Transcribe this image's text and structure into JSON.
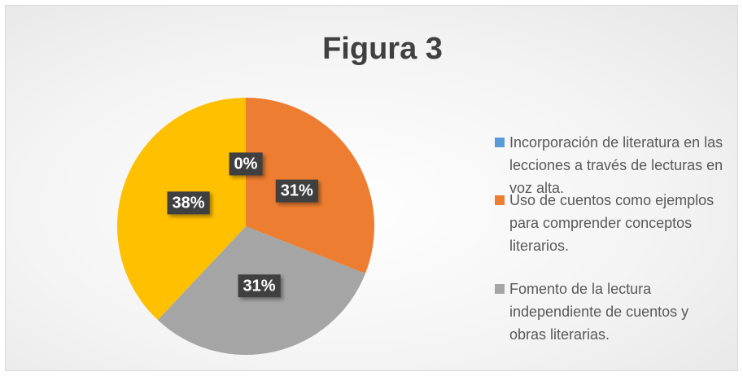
{
  "chart_data": {
    "type": "pie",
    "title": "Figura 3",
    "categories": [
      "Incorporación de literatura en las lecciones a través de lecturas en voz alta.",
      "Uso de cuentos como ejemplos para comprender conceptos literarios.",
      "Fomento de la lectura independiente de cuentos y obras literarias.",
      null
    ],
    "values": [
      0,
      31,
      31,
      38
    ],
    "value_labels": [
      "0%",
      "31%",
      "31%",
      "38%"
    ],
    "colors": [
      "#5b9bd5",
      "#ed7d31",
      "#a5a5a5",
      "#ffc000"
    ],
    "legend": "right"
  }
}
